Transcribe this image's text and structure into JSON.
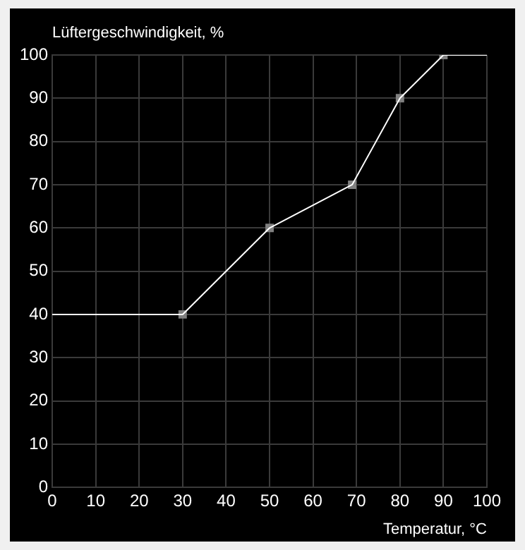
{
  "chart_data": {
    "type": "line",
    "xlabel": "Temperatur, °C",
    "ylabel": "Lüftergeschwindigkeit, %",
    "series": [
      {
        "type": "line",
        "color": "#ffffff",
        "x": [
          0,
          30,
          50,
          69,
          80,
          90,
          100
        ],
        "values": [
          40,
          40,
          60,
          70,
          90,
          100,
          100
        ],
        "marker": "none"
      },
      {
        "type": "scatter",
        "color": "#808080",
        "x": [
          30,
          50,
          69,
          80,
          90
        ],
        "values": [
          40,
          60,
          70,
          90,
          100
        ],
        "marker": "square"
      }
    ],
    "xlim": [
      0,
      100
    ],
    "xticks": [
      0,
      10,
      20,
      30,
      40,
      50,
      60,
      70,
      80,
      90,
      100
    ],
    "ylim": [
      0,
      100
    ],
    "yticks": [
      0,
      10,
      20,
      30,
      40,
      50,
      60,
      70,
      80,
      90,
      100
    ],
    "grid": true,
    "legend": false
  }
}
